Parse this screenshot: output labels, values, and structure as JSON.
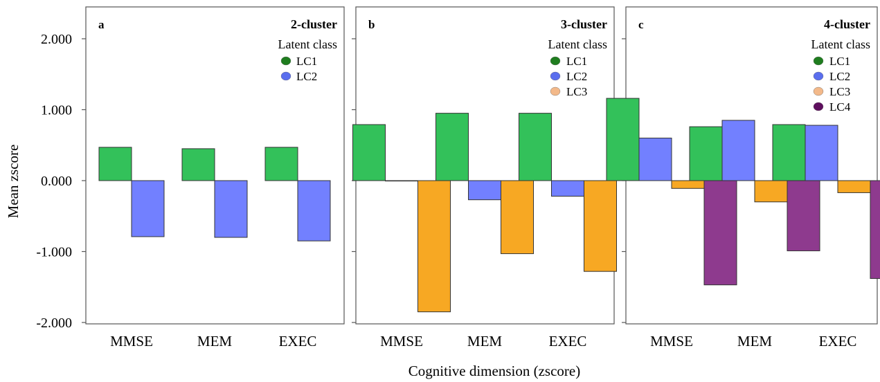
{
  "ylabel": "Mean zscore",
  "xlabel": "Cognitive dimension (zscore)",
  "y_ticks": [
    "2.000",
    "1.000",
    "0.000",
    "-1.000",
    "-2.000"
  ],
  "legend_title": "Latent class",
  "chart_data": [
    {
      "type": "bar",
      "panel_letter": "a",
      "title": "2-cluster",
      "categories": [
        "MMSE",
        "MEM",
        "EXEC"
      ],
      "ylim": [
        -2,
        2
      ],
      "legend_position": "top-right",
      "series": [
        {
          "name": "LC1",
          "color": "#33c15a",
          "marker_color": "#1f7d1f",
          "values": [
            0.47,
            0.45,
            0.47
          ]
        },
        {
          "name": "LC2",
          "color": "#7280ff",
          "marker_color": "#5a6eee",
          "values": [
            -0.79,
            -0.8,
            -0.85
          ]
        }
      ]
    },
    {
      "type": "bar",
      "panel_letter": "b",
      "title": "3-cluster",
      "categories": [
        "MMSE",
        "MEM",
        "EXEC"
      ],
      "ylim": [
        -2,
        2
      ],
      "legend_position": "top-right",
      "series": [
        {
          "name": "LC1",
          "color": "#33c15a",
          "marker_color": "#1f7d1f",
          "values": [
            0.79,
            0.95,
            0.95
          ]
        },
        {
          "name": "LC2",
          "color": "#7280ff",
          "marker_color": "#5a6eee",
          "values": [
            0.0,
            -0.27,
            -0.22
          ]
        },
        {
          "name": "LC3",
          "color": "#f7a823",
          "marker_color": "#f3b98a",
          "values": [
            -1.85,
            -1.03,
            -1.28
          ]
        }
      ]
    },
    {
      "type": "bar",
      "panel_letter": "c",
      "title": "4-cluster",
      "categories": [
        "MMSE",
        "MEM",
        "EXEC"
      ],
      "ylim": [
        -2,
        2
      ],
      "legend_position": "top-right",
      "series": [
        {
          "name": "LC1",
          "color": "#33c15a",
          "marker_color": "#1f7d1f",
          "values": [
            1.16,
            0.76,
            0.79
          ]
        },
        {
          "name": "LC2",
          "color": "#7280ff",
          "marker_color": "#5a6eee",
          "values": [
            0.6,
            0.85,
            0.78
          ]
        },
        {
          "name": "LC3",
          "color": "#f7a823",
          "marker_color": "#f3b98a",
          "values": [
            -0.11,
            -0.3,
            -0.17
          ]
        },
        {
          "name": "LC4",
          "color": "#8e3a8e",
          "marker_color": "#5e0f5e",
          "values": [
            -1.47,
            -0.99,
            -1.38
          ]
        }
      ]
    }
  ]
}
